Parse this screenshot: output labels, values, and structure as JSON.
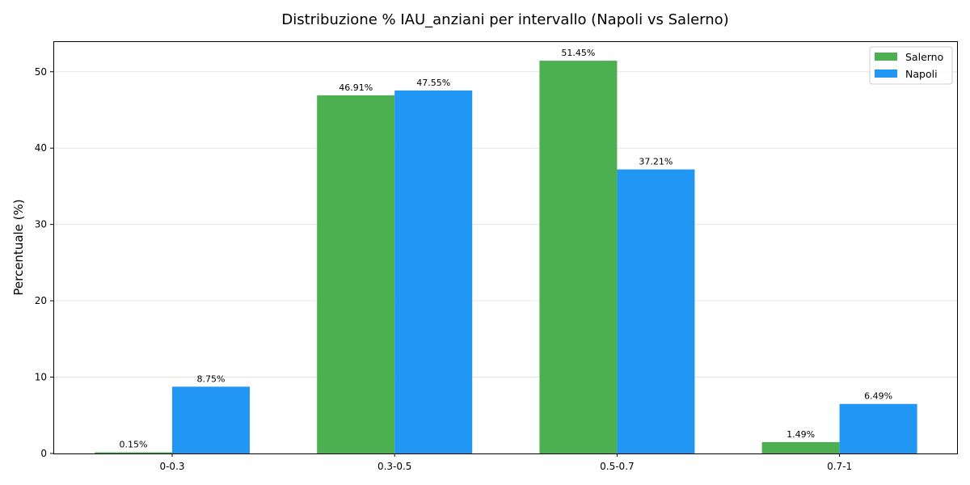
{
  "chart_data": {
    "type": "bar",
    "title": "Distribuzione % IAU_anziani per intervallo (Napoli vs Salerno)",
    "xlabel": "",
    "ylabel": "Percentuale (%)",
    "ylim": [
      0,
      54.0
    ],
    "yticks": [
      0,
      10,
      20,
      30,
      40,
      50
    ],
    "categories": [
      "0-0.3",
      "0.3-0.5",
      "0.5-0.7",
      "0.7-1"
    ],
    "grid": "y",
    "legend_position": "top-right",
    "series": [
      {
        "name": "Salerno",
        "color": "#4caf50",
        "values": [
          0.15,
          46.91,
          51.45,
          1.49
        ],
        "labels": [
          "0.15%",
          "46.91%",
          "51.45%",
          "1.49%"
        ]
      },
      {
        "name": "Napoli",
        "color": "#2196f3",
        "values": [
          8.75,
          47.55,
          37.21,
          6.49
        ],
        "labels": [
          "8.75%",
          "47.55%",
          "37.21%",
          "6.49%"
        ]
      }
    ]
  }
}
